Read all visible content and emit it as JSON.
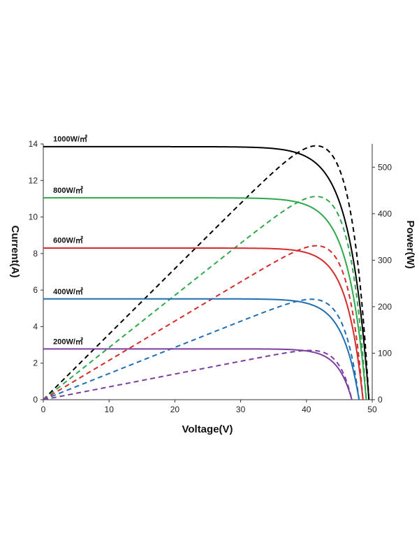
{
  "chart_data": {
    "type": "line",
    "title": "",
    "xlabel": "Voltage(V)",
    "ylabel_left": "Current(A)",
    "ylabel_right": "Power(W)",
    "xlim": [
      0,
      50
    ],
    "ylim_left": [
      0,
      14
    ],
    "ylim_right": [
      0,
      550
    ],
    "x_ticks": [
      0,
      10,
      20,
      30,
      40,
      50
    ],
    "y_left_ticks": [
      0,
      2,
      4,
      6,
      8,
      10,
      12,
      14
    ],
    "y_right_ticks": [
      0,
      100,
      200,
      300,
      400,
      500
    ],
    "grid": false,
    "legend": "none",
    "series": [
      {
        "name": "1000W/㎡",
        "color": "#000000",
        "isc": 13.85,
        "voc": 49.5,
        "vmp": 41.5,
        "pmax": 546,
        "label_y": 13.9
      },
      {
        "name": "800W/㎡",
        "color": "#2ea84a",
        "isc": 11.05,
        "voc": 49.1,
        "vmp": 41.5,
        "pmax": 437,
        "label_y": 11.1
      },
      {
        "name": "600W/㎡",
        "color": "#d42b2b",
        "isc": 8.3,
        "voc": 48.6,
        "vmp": 41.5,
        "pmax": 331,
        "label_y": 8.35
      },
      {
        "name": "400W/㎡",
        "color": "#1f6fb2",
        "isc": 5.52,
        "voc": 48.0,
        "vmp": 40.8,
        "pmax": 216,
        "label_y": 5.55
      },
      {
        "name": "200W/㎡",
        "color": "#7b3fa0",
        "isc": 2.78,
        "voc": 46.9,
        "vmp": 40.5,
        "pmax": 106,
        "label_y": 2.82
      }
    ]
  }
}
